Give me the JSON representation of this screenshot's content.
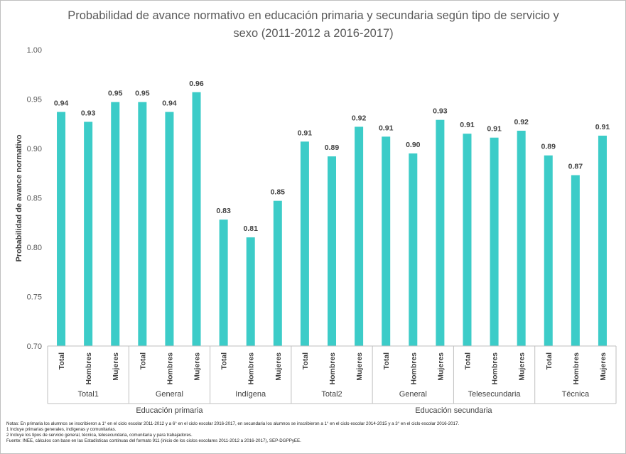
{
  "chart_data": {
    "type": "bar",
    "title_lines": [
      "Probabilidad de avance normativo en educación primaria y secundaria según tipo de servicio y",
      "sexo (2011-2012 a 2016-2017)"
    ],
    "ylabel": "Probabilidad  de avance normativo",
    "ylim": [
      0.7,
      1.0
    ],
    "yticks": [
      "0.70",
      "0.75",
      "0.80",
      "0.85",
      "0.90",
      "0.95",
      "1.00"
    ],
    "grid": false,
    "bar_color": "#3cccc8",
    "categories": [
      "Total",
      "Hombres",
      "Mujeres",
      "Total",
      "Hombres",
      "Mujeres",
      "Total",
      "Hombres",
      "Mujeres",
      "Total",
      "Hombres",
      "Mujeres",
      "Total",
      "Hombres",
      "Mujeres",
      "Total",
      "Hombres",
      "Mujeres",
      "Total",
      "Hombres",
      "Mujeres"
    ],
    "values": [
      0.937,
      0.927,
      0.947,
      0.947,
      0.937,
      0.957,
      0.828,
      0.81,
      0.847,
      0.907,
      0.892,
      0.922,
      0.912,
      0.895,
      0.929,
      0.915,
      0.911,
      0.918,
      0.893,
      0.873,
      0.913
    ],
    "data_labels": [
      "0.94",
      "0.93",
      "0.95",
      "0.95",
      "0.94",
      "0.96",
      "0.83",
      "0.81",
      "0.85",
      "0.91",
      "0.89",
      "0.92",
      "0.91",
      "0.90",
      "0.93",
      "0.91",
      "0.91",
      "0.92",
      "0.89",
      "0.87",
      "0.91"
    ],
    "groups": [
      "Total1",
      "General",
      "Indígena",
      "Total2",
      "General",
      "Telesecundaria",
      "Técnica"
    ],
    "supergroups": [
      {
        "label": "Educación primaria",
        "groups": 3
      },
      {
        "label": "Educación secundaria",
        "groups": 4
      }
    ]
  },
  "notes": [
    "Notas: En primaria los alumnos se inscribieron a 1° en el ciclo escolar 2011-2012  y a 6° en el ciclo escolar 2016-2017,  en secundaria  los alumnos  se inscribieron a 1° en el ciclo escolar 2014-2015  y a 3° en el ciclo escolar 2016-2017.",
    "1 Incluye primarias generales, indígenas y comunitarias.",
    "2 Incluye los tipos de servicio general, técnica, telesecundaria,  comunitaria  y para trabajadores.",
    "Fuente: INEE, cálculos con base en las Estadísticas continuas del formato  911 (inicio de los ciclos escolares 2011-2012  a 2016-2017),  SEP-DGPPyEE."
  ]
}
